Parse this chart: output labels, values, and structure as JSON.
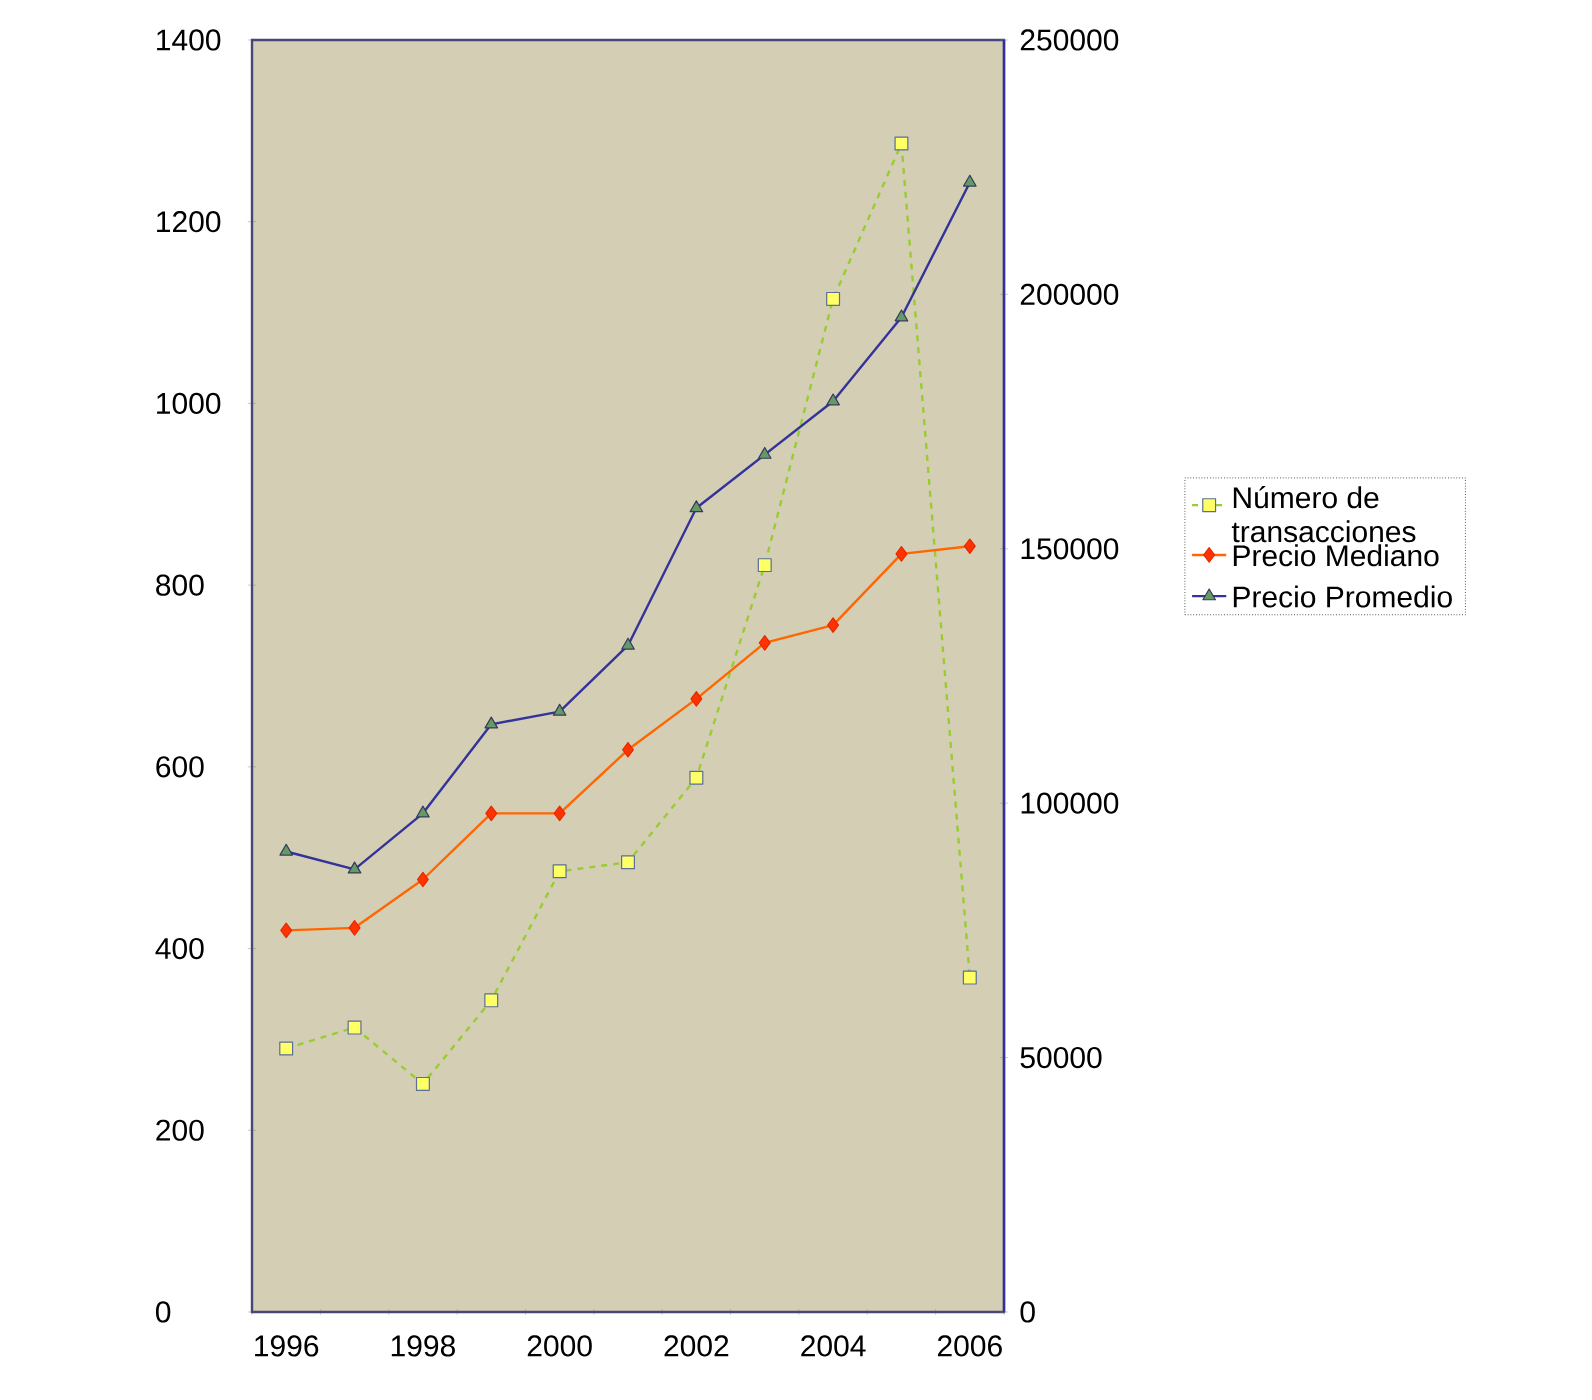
{
  "chart_data": {
    "type": "line",
    "categories": [
      "1996",
      null,
      "1998",
      null,
      "2000",
      null,
      "2002",
      null,
      "2004",
      null,
      "2006"
    ],
    "series": [
      {
        "name": "Número de transacciones",
        "color": "#99cc33",
        "axis": "y",
        "marker": "square",
        "line_style": "dashed",
        "values": [
          290,
          313,
          251,
          343,
          485,
          495,
          588,
          822,
          1115,
          1286,
          368
        ]
      },
      {
        "name": "Precio Mediano",
        "color": "#ff6600",
        "axis": "y2",
        "marker": "diamond",
        "line_style": "solid",
        "values": [
          75000,
          75500,
          85000,
          98000,
          98000,
          110500,
          120500,
          131500,
          135000,
          149000,
          150500
        ]
      },
      {
        "name": "Precio Promedio",
        "color": "#333399",
        "axis": "y2",
        "marker": "triangle",
        "line_style": "solid",
        "values": [
          90500,
          87000,
          98000,
          115500,
          118000,
          131000,
          158000,
          168500,
          179000,
          195500,
          222000
        ]
      }
    ],
    "ylim": [
      0,
      1400
    ],
    "yticks": [
      0,
      200,
      400,
      600,
      800,
      1000,
      1200,
      1400
    ],
    "y2lim": [
      0,
      250000
    ],
    "y2ticks": [
      0,
      50000,
      100000,
      150000,
      200000,
      250000
    ],
    "legend": "right",
    "grid": false
  }
}
